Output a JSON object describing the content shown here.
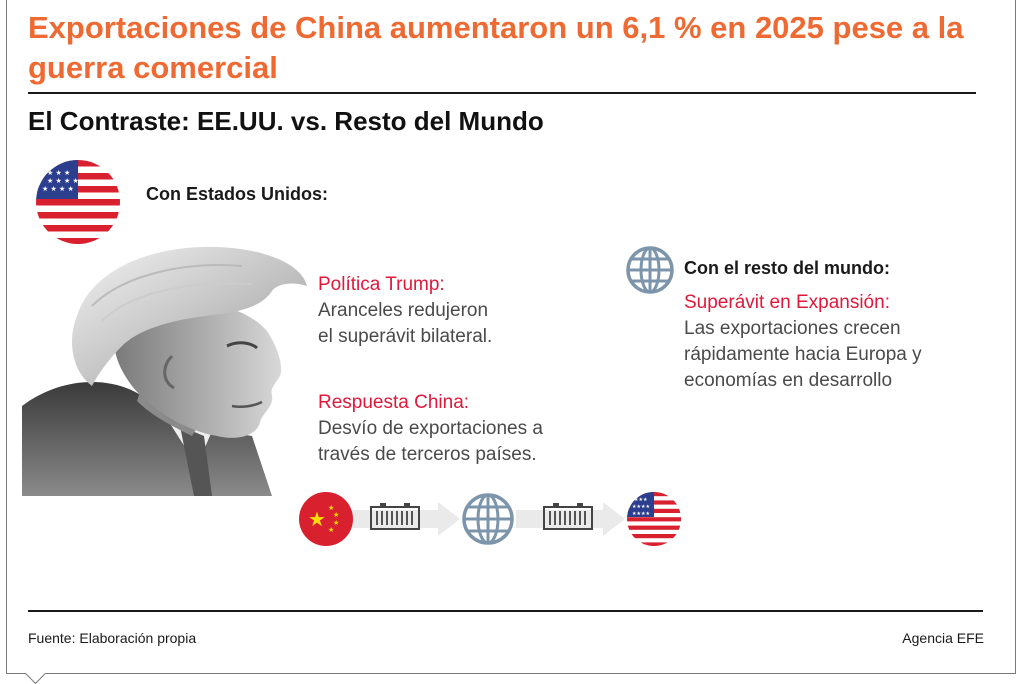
{
  "header": {
    "title": "Exportaciones de China aumentaron un 6,1 % en 2025 pese a la guerra comercial",
    "subtitle": "El Contraste: EE.UU. vs. Resto del Mundo"
  },
  "us_section": {
    "heading": "Con Estados Unidos:",
    "trump_policy": {
      "label": "Política Trump:",
      "line1": "Aranceles redujeron",
      "line2": "el superávit bilateral."
    },
    "china_response": {
      "label": "Respuesta China:",
      "line1": "Desvío de exportaciones a",
      "line2": "través de terceros países."
    }
  },
  "world_section": {
    "heading": "Con el resto del mundo:",
    "label": "Superávit en Expansión:",
    "line1": "Las exportaciones crecen",
    "line2": "rápidamente hacia Europa y",
    "line3": "economías en desarrollo"
  },
  "icons": {
    "us_flag": "us-flag-icon",
    "china_flag": "china-flag-icon",
    "globe": "globe-icon",
    "container": "container-icon"
  },
  "colors": {
    "title_orange": "#ef6a32",
    "label_red": "#e0183a",
    "flag_red": "#d8202f",
    "flag_blue": "#2c3f8f",
    "globe_blue": "#7d95ab"
  },
  "footer": {
    "source": "Fuente: Elaboración propia",
    "agency": "Agencia EFE"
  }
}
